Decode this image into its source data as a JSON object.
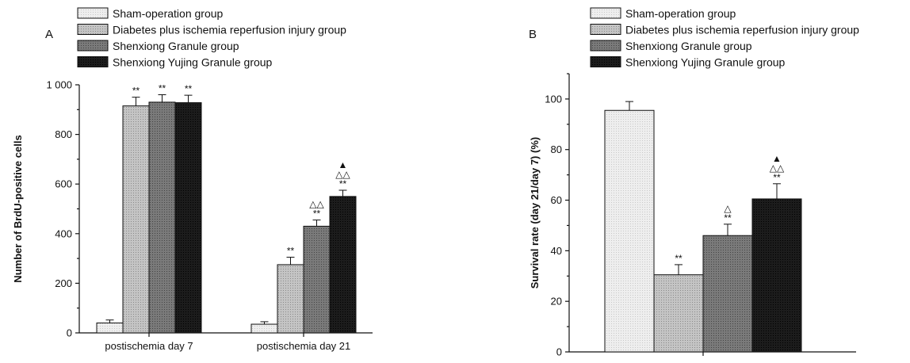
{
  "chart_data": [
    {
      "type": "bar",
      "panel_label": "A",
      "ylabel": "Number of BrdU-positive cells",
      "xlabel": "",
      "ylim": [
        0,
        1000
      ],
      "yticks": [
        {
          "value": 0,
          "label": "0"
        },
        {
          "value": 200,
          "label": "200"
        },
        {
          "value": 400,
          "label": "400"
        },
        {
          "value": 600,
          "label": "600"
        },
        {
          "value": 800,
          "label": "800"
        },
        {
          "value": 1000,
          "label": "1 000"
        }
      ],
      "categories": [
        "postischemia day 7",
        "postischemia day 21"
      ],
      "series": [
        {
          "name": "Sham-operation group",
          "values": [
            40,
            35
          ],
          "errors": [
            12,
            10
          ],
          "annotations": [
            "",
            ""
          ]
        },
        {
          "name": "Diabetes plus ischemia reperfusion injury group",
          "values": [
            915,
            275
          ],
          "errors": [
            35,
            30
          ],
          "annotations": [
            "**",
            "**"
          ]
        },
        {
          "name": "Shenxiong Granule group",
          "values": [
            930,
            430
          ],
          "errors": [
            30,
            25
          ],
          "annotations": [
            "**",
            "△△\n**"
          ]
        },
        {
          "name": "Shenxiong Yujing Granule group",
          "values": [
            928,
            550
          ],
          "errors": [
            30,
            25
          ],
          "annotations": [
            "**",
            "▲\n△△\n**"
          ]
        }
      ],
      "legend_position": "top",
      "grid": false
    },
    {
      "type": "bar",
      "panel_label": "B",
      "ylabel": "Survival rate (day 21/day 7) (%)",
      "xlabel": "",
      "ylim": [
        0,
        110
      ],
      "yticks": [
        {
          "value": 0,
          "label": "0"
        },
        {
          "value": 20,
          "label": "20"
        },
        {
          "value": 40,
          "label": "40"
        },
        {
          "value": 60,
          "label": "60"
        },
        {
          "value": 80,
          "label": "80"
        },
        {
          "value": 100,
          "label": "100"
        }
      ],
      "categories": [
        ""
      ],
      "series": [
        {
          "name": "Sham-operation group",
          "values": [
            95.5
          ],
          "errors": [
            3.5
          ],
          "annotations": [
            ""
          ]
        },
        {
          "name": "Diabetes plus ischemia reperfusion injury group",
          "values": [
            30.5
          ],
          "errors": [
            4
          ],
          "annotations": [
            "**"
          ]
        },
        {
          "name": "Shenxiong Granule group",
          "values": [
            46
          ],
          "errors": [
            4.5
          ],
          "annotations": [
            "△\n**"
          ]
        },
        {
          "name": "Shenxiong Yujing Granule group",
          "values": [
            60.5
          ],
          "errors": [
            6
          ],
          "annotations": [
            "▲\n△△\n**"
          ]
        }
      ],
      "legend_position": "top",
      "grid": false
    }
  ],
  "series_fills": [
    "#e6e6e6",
    "#b8b8b8",
    "#6e6e6e",
    "#1a1a1a"
  ]
}
